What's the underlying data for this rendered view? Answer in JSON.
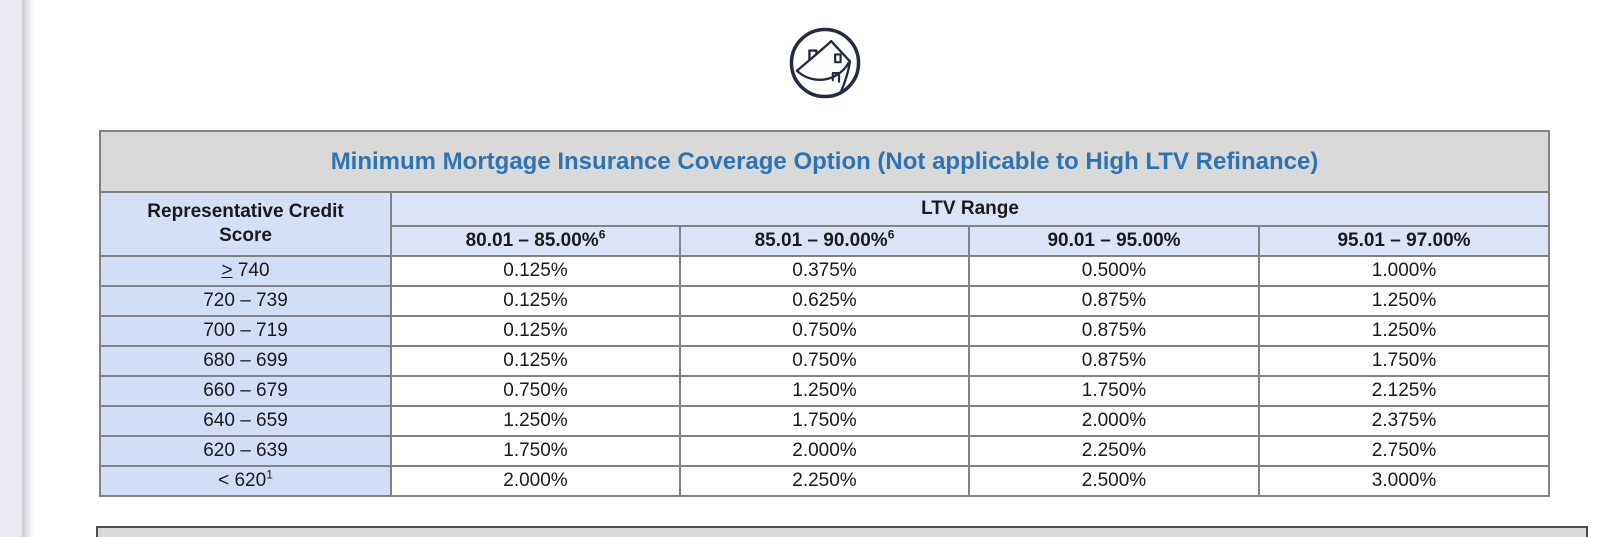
{
  "page": {
    "background": "#ffffff",
    "edge_strip_color": "#e9eaf2"
  },
  "logo": {
    "name": "house-in-circle-logo",
    "stroke_color": "#262b44"
  },
  "mi_table": {
    "title": "Minimum Mortgage Insurance Coverage Option (Not applicable to High LTV Refinance)",
    "title_color": "#2e74b5",
    "title_bg": "#d9d9d9",
    "credit_score_header": "Representative Credit Score",
    "ltv_range_header": "LTV Range",
    "header_bg": "#dbe4f6",
    "label_bg": "#d2def6",
    "ltv_columns": [
      {
        "label": "80.01 – 85.00%",
        "sup": "6"
      },
      {
        "label": "85.01 – 90.00%",
        "sup": "6"
      },
      {
        "label": "90.01 – 95.00%",
        "sup": ""
      },
      {
        "label": "95.01 – 97.00%",
        "sup": ""
      }
    ],
    "rows": [
      {
        "score": "> 740",
        "underline_first_char": true,
        "sup": "",
        "values": [
          "0.125%",
          "0.375%",
          "0.500%",
          "1.000%"
        ]
      },
      {
        "score": "720 – 739",
        "underline_first_char": false,
        "sup": "",
        "values": [
          "0.125%",
          "0.625%",
          "0.875%",
          "1.250%"
        ]
      },
      {
        "score": "700 – 719",
        "underline_first_char": false,
        "sup": "",
        "values": [
          "0.125%",
          "0.750%",
          "0.875%",
          "1.250%"
        ]
      },
      {
        "score": "680 – 699",
        "underline_first_char": false,
        "sup": "",
        "values": [
          "0.125%",
          "0.750%",
          "0.875%",
          "1.750%"
        ]
      },
      {
        "score": "660 – 679",
        "underline_first_char": false,
        "sup": "",
        "values": [
          "0.750%",
          "1.250%",
          "1.750%",
          "2.125%"
        ]
      },
      {
        "score": "640 – 659",
        "underline_first_char": false,
        "sup": "",
        "values": [
          "1.250%",
          "1.750%",
          "2.000%",
          "2.375%"
        ]
      },
      {
        "score": "620 – 639",
        "underline_first_char": false,
        "sup": "",
        "values": [
          "1.750%",
          "2.000%",
          "2.250%",
          "2.750%"
        ]
      },
      {
        "score": "< 620",
        "underline_first_char": false,
        "sup": "1",
        "values": [
          "2.000%",
          "2.250%",
          "2.500%",
          "3.000%"
        ]
      }
    ]
  },
  "next_table": {
    "visible_top_bg": "#d9d9d9"
  }
}
